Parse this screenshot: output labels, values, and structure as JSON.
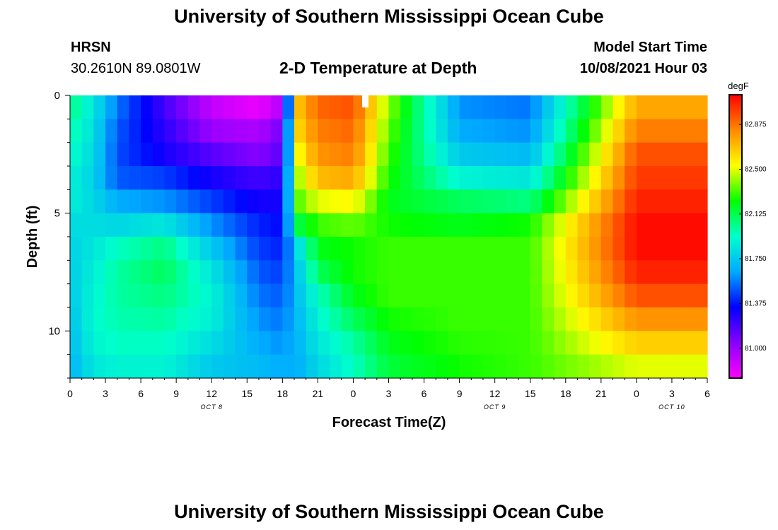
{
  "header": {
    "title": "University of Southern Mississippi Ocean Cube",
    "station": "HRSN",
    "coordinates": "30.2610N  89.0801W",
    "plot_title": "2-D Temperature at Depth",
    "model_label": "Model Start Time",
    "model_time": "10/08/2021 Hour 03"
  },
  "footer": {
    "title": "University of Southern Mississippi Ocean Cube"
  },
  "chart_data": {
    "type": "heatmap",
    "title": "2-D Temperature at Depth",
    "xlabel": "Forecast Time(Z)",
    "ylabel": "Depth (ft)",
    "x_hours": [
      0,
      54
    ],
    "y_depth_ft": [
      0,
      12
    ],
    "x_ticks": [
      "0",
      "3",
      "6",
      "9",
      "12",
      "15",
      "18",
      "21",
      "0",
      "3",
      "6",
      "9",
      "12",
      "15",
      "18",
      "21",
      "0",
      "3",
      "6"
    ],
    "day_labels": [
      {
        "text": "OCT 8",
        "hour": 12
      },
      {
        "text": "OCT 9",
        "hour": 36
      },
      {
        "text": "OCT 10",
        "hour": 51
      }
    ],
    "y_ticks": [
      0,
      5,
      10
    ],
    "colorbar": {
      "unit": "degF",
      "min": 80.75,
      "max": 83.125,
      "labels": [
        "82.875",
        "82.500",
        "82.125",
        "81.750",
        "81.375",
        "81.000"
      ],
      "colors": [
        "#ff00ff",
        "#8800ff",
        "#0000ff",
        "#00aaff",
        "#00ffcc",
        "#00ff00",
        "#ffff00",
        "#ff8800",
        "#ff0000"
      ]
    },
    "time_keys": [
      0,
      1,
      2,
      3,
      4,
      5,
      6,
      7,
      8,
      9,
      10,
      11,
      12,
      13
    ],
    "time_key_hours": [
      0,
      2,
      4,
      8,
      12,
      16,
      18,
      19.5,
      21,
      24,
      27,
      33,
      39,
      48
    ],
    "profiles_surface_to_bottom_degF": [
      [
        82.05,
        82.0,
        81.95,
        81.9,
        81.88,
        81.82,
        81.78,
        81.76,
        81.75,
        81.72,
        81.7,
        81.68
      ],
      [
        81.85,
        81.82,
        81.8,
        81.78,
        81.8,
        81.82,
        81.85,
        81.88,
        81.9,
        81.92,
        81.9,
        81.85
      ],
      [
        81.55,
        81.5,
        81.48,
        81.5,
        81.65,
        81.8,
        81.95,
        82.0,
        82.0,
        81.98,
        81.95,
        81.9
      ],
      [
        81.2,
        81.25,
        81.3,
        81.45,
        81.6,
        81.85,
        82.05,
        82.1,
        82.05,
        82.0,
        81.95,
        81.9
      ],
      [
        80.9,
        81.0,
        81.15,
        81.3,
        81.45,
        81.6,
        81.75,
        81.85,
        81.9,
        81.88,
        81.82,
        81.75
      ],
      [
        80.8,
        80.95,
        81.05,
        81.2,
        81.3,
        81.4,
        81.45,
        81.5,
        81.55,
        81.6,
        81.65,
        81.7
      ],
      [
        80.95,
        81.1,
        81.15,
        81.25,
        81.3,
        81.35,
        81.4,
        81.45,
        81.5,
        81.55,
        81.6,
        81.65
      ],
      [
        82.7,
        82.65,
        82.55,
        82.45,
        82.35,
        82.15,
        81.85,
        81.78,
        81.75,
        81.72,
        81.7,
        81.68
      ],
      [
        82.9,
        82.85,
        82.8,
        82.7,
        82.5,
        82.3,
        82.2,
        82.1,
        81.95,
        81.9,
        81.85,
        81.8
      ],
      [
        82.95,
        82.9,
        82.85,
        82.75,
        82.55,
        82.35,
        82.25,
        82.25,
        82.2,
        82.1,
        82.0,
        81.95
      ],
      [
        82.4,
        82.35,
        82.3,
        82.25,
        82.2,
        82.25,
        82.3,
        82.3,
        82.3,
        82.25,
        82.2,
        82.15
      ],
      [
        81.6,
        81.65,
        81.75,
        81.9,
        82.1,
        82.2,
        82.3,
        82.3,
        82.3,
        82.3,
        82.28,
        82.25
      ],
      [
        81.55,
        81.6,
        81.7,
        81.85,
        82.05,
        82.25,
        82.3,
        82.3,
        82.3,
        82.3,
        82.3,
        82.3
      ],
      [
        82.75,
        82.85,
        82.95,
        83.0,
        83.05,
        83.1,
        83.1,
        83.05,
        82.95,
        82.8,
        82.65,
        82.5
      ]
    ]
  }
}
